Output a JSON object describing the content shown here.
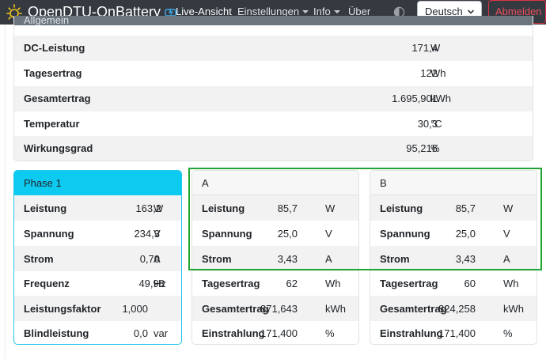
{
  "navbar": {
    "brand": "OpenDTU-OnBattery",
    "items": [
      {
        "label": "Live-Ansicht",
        "active": true
      },
      {
        "label": "Einstellungen",
        "dropdown": true
      },
      {
        "label": "Info",
        "dropdown": true
      },
      {
        "label": "Über"
      }
    ],
    "language": "Deutsch",
    "logout": "Abmelden"
  },
  "general": {
    "header": "Allgemein",
    "rows": [
      {
        "label": "DC-Leistung",
        "value": "171,4",
        "unit": "W"
      },
      {
        "label": "Tagesertrag",
        "value": "122",
        "unit": "Wh"
      },
      {
        "label": "Gesamtertrag",
        "value": "1.695,901",
        "unit": "kWh"
      },
      {
        "label": "Temperatur",
        "value": "30,3",
        "unit": "°C"
      },
      {
        "label": "Wirkungsgrad",
        "value": "95,216",
        "unit": "%"
      }
    ]
  },
  "phase": {
    "title": "Phase 1",
    "rows": [
      {
        "label": "Leistung",
        "value": "163,2",
        "unit": "W"
      },
      {
        "label": "Spannung",
        "value": "234,3",
        "unit": "V"
      },
      {
        "label": "Strom",
        "value": "0,70",
        "unit": "A"
      },
      {
        "label": "Frequenz",
        "value": "49,98",
        "unit": "Hz"
      },
      {
        "label": "Leistungsfaktor",
        "value": "1,000",
        "unit": ""
      },
      {
        "label": "Blindleistung",
        "value": "0,0",
        "unit": "var"
      }
    ]
  },
  "strings": [
    {
      "title": "A",
      "rows": [
        {
          "label": "Leistung",
          "value": "85,7",
          "unit": "W"
        },
        {
          "label": "Spannung",
          "value": "25,0",
          "unit": "V"
        },
        {
          "label": "Strom",
          "value": "3,43",
          "unit": "A"
        },
        {
          "label": "Tagesertrag",
          "value": "62",
          "unit": "Wh"
        },
        {
          "label": "Gesamtertrag",
          "value": "871,643",
          "unit": "kWh"
        },
        {
          "label": "Einstrahlung",
          "value": "171,400",
          "unit": "%"
        }
      ]
    },
    {
      "title": "B",
      "rows": [
        {
          "label": "Leistung",
          "value": "85,7",
          "unit": "W"
        },
        {
          "label": "Spannung",
          "value": "25,0",
          "unit": "V"
        },
        {
          "label": "Strom",
          "value": "3,43",
          "unit": "A"
        },
        {
          "label": "Tagesertrag",
          "value": "60",
          "unit": "Wh"
        },
        {
          "label": "Gesamtertrag",
          "value": "824,258",
          "unit": "kWh"
        },
        {
          "label": "Einstrahlung",
          "value": "171,400",
          "unit": "%"
        }
      ]
    }
  ],
  "colors": {
    "navbar": "#343a40",
    "phase_header": "#0dcaf0",
    "highlight_frame": "#22a336",
    "logout": "#dc3545"
  }
}
